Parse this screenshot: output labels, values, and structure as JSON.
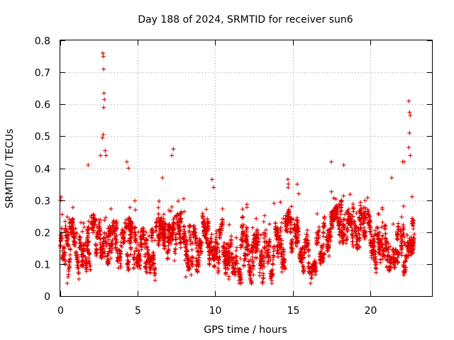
{
  "chart_data": {
    "type": "scatter",
    "title": "Day 188 of 2024, SRMTID for receiver sun6",
    "xlabel": "GPS time / hours",
    "ylabel": "SRMTID / TECUs",
    "xlim": [
      0,
      24
    ],
    "ylim": [
      0,
      0.8
    ],
    "x_ticks": [
      0,
      5,
      10,
      15,
      20
    ],
    "x_tick_labels": [
      "0",
      "5",
      "10",
      "15",
      "20"
    ],
    "y_ticks": [
      0,
      0.1,
      0.2,
      0.3,
      0.4,
      0.5,
      0.6,
      0.7,
      0.8
    ],
    "y_tick_labels": [
      "0",
      "0.1",
      "0.2",
      "0.3",
      "0.4",
      "0.5",
      "0.6",
      "0.7",
      "0.8"
    ],
    "grid": true,
    "marker": "plus",
    "color": "#e00000",
    "series": [
      {
        "name": "SRMTID",
        "trend": [
          [
            0.0,
            0.19
          ],
          [
            0.5,
            0.17
          ],
          [
            1.0,
            0.14
          ],
          [
            1.5,
            0.15
          ],
          [
            2.0,
            0.18
          ],
          [
            2.5,
            0.2
          ],
          [
            3.0,
            0.19
          ],
          [
            3.5,
            0.15
          ],
          [
            4.0,
            0.17
          ],
          [
            4.5,
            0.16
          ],
          [
            5.0,
            0.13
          ],
          [
            5.5,
            0.15
          ],
          [
            6.0,
            0.14
          ],
          [
            6.5,
            0.17
          ],
          [
            7.0,
            0.2
          ],
          [
            7.5,
            0.21
          ],
          [
            8.0,
            0.17
          ],
          [
            8.5,
            0.14
          ],
          [
            9.0,
            0.15
          ],
          [
            9.5,
            0.17
          ],
          [
            10.0,
            0.16
          ],
          [
            10.5,
            0.15
          ],
          [
            11.0,
            0.13
          ],
          [
            11.5,
            0.12
          ],
          [
            12.0,
            0.13
          ],
          [
            12.5,
            0.12
          ],
          [
            13.0,
            0.12
          ],
          [
            13.5,
            0.12
          ],
          [
            14.0,
            0.14
          ],
          [
            14.5,
            0.17
          ],
          [
            15.0,
            0.2
          ],
          [
            15.5,
            0.17
          ],
          [
            16.0,
            0.13
          ],
          [
            16.5,
            0.14
          ],
          [
            17.0,
            0.17
          ],
          [
            17.5,
            0.22
          ],
          [
            18.0,
            0.24
          ],
          [
            18.5,
            0.23
          ],
          [
            19.0,
            0.22
          ],
          [
            19.5,
            0.21
          ],
          [
            20.0,
            0.2
          ],
          [
            20.5,
            0.18
          ],
          [
            21.0,
            0.16
          ],
          [
            21.5,
            0.15
          ],
          [
            22.0,
            0.13
          ],
          [
            22.5,
            0.18
          ],
          [
            22.9,
            0.2
          ]
        ],
        "spikes": [
          [
            2.75,
            0.76
          ],
          [
            2.78,
            0.75
          ],
          [
            2.8,
            0.71
          ],
          [
            2.82,
            0.635
          ],
          [
            2.85,
            0.615
          ],
          [
            2.8,
            0.59
          ],
          [
            2.77,
            0.505
          ],
          [
            2.72,
            0.495
          ],
          [
            2.95,
            0.44
          ],
          [
            2.9,
            0.455
          ],
          [
            2.6,
            0.44
          ],
          [
            4.3,
            0.42
          ],
          [
            4.4,
            0.4
          ],
          [
            7.3,
            0.46
          ],
          [
            7.2,
            0.44
          ],
          [
            6.6,
            0.37
          ],
          [
            9.8,
            0.365
          ],
          [
            9.9,
            0.34
          ],
          [
            17.5,
            0.42
          ],
          [
            18.3,
            0.41
          ],
          [
            22.5,
            0.61
          ],
          [
            22.55,
            0.575
          ],
          [
            22.6,
            0.565
          ],
          [
            22.55,
            0.51
          ],
          [
            22.5,
            0.465
          ],
          [
            22.6,
            0.44
          ],
          [
            22.2,
            0.42
          ],
          [
            22.1,
            0.42
          ],
          [
            21.4,
            0.37
          ],
          [
            14.7,
            0.365
          ],
          [
            15.3,
            0.35
          ],
          [
            15.4,
            0.32
          ],
          [
            13.8,
            0.29
          ],
          [
            1.8,
            0.41
          ],
          [
            0.05,
            0.31
          ],
          [
            0.0,
            0.3
          ],
          [
            0.5,
            0.06
          ],
          [
            0.45,
            0.04
          ],
          [
            8.1,
            0.06
          ]
        ],
        "point_count": 3500,
        "x_range": [
          0,
          22.9
        ]
      }
    ]
  }
}
